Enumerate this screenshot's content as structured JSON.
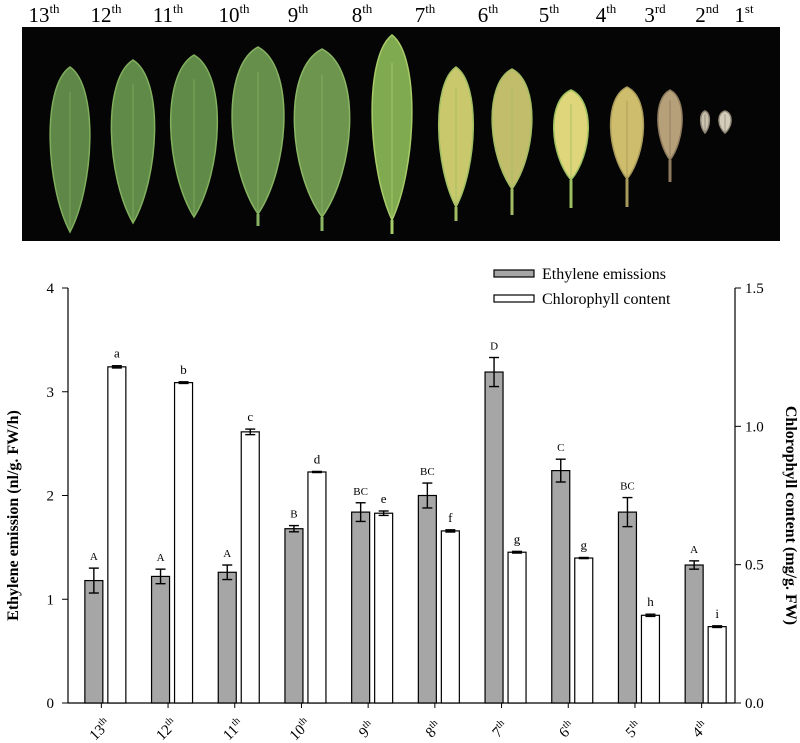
{
  "photo": {
    "leaf_labels": [
      {
        "num": "13",
        "suf": "th"
      },
      {
        "num": "12",
        "suf": "th"
      },
      {
        "num": "11",
        "suf": "th"
      },
      {
        "num": "10",
        "suf": "th"
      },
      {
        "num": "9",
        "suf": "th"
      },
      {
        "num": "8",
        "suf": "th"
      },
      {
        "num": "7",
        "suf": "th"
      },
      {
        "num": "6",
        "suf": "th"
      },
      {
        "num": "5",
        "suf": "th"
      },
      {
        "num": "4",
        "suf": "th"
      },
      {
        "num": "3",
        "suf": "rd"
      },
      {
        "num": "2",
        "suf": "nd"
      },
      {
        "num": "1",
        "suf": "st"
      }
    ],
    "leaves": [
      {
        "fill": "#5f8748",
        "edge": "#7fae5c"
      },
      {
        "fill": "#5f8a47",
        "edge": "#82b05e"
      },
      {
        "fill": "#5f8a47",
        "edge": "#82b05e"
      },
      {
        "fill": "#678f4c",
        "edge": "#86b262"
      },
      {
        "fill": "#6d954e",
        "edge": "#8bb765"
      },
      {
        "fill": "#7faa4f",
        "edge": "#a9cc6a"
      },
      {
        "fill": "#c9c86c",
        "edge": "#9fbf62"
      },
      {
        "fill": "#c2bd6a",
        "edge": "#a4bd64"
      },
      {
        "fill": "#dfd67c",
        "edge": "#9cbf60"
      },
      {
        "fill": "#cdbd6c",
        "edge": "#a89a5a"
      },
      {
        "fill": "#b5a07a",
        "edge": "#8e7a5d"
      },
      {
        "fill": "#c9c2ae",
        "edge": "#8e8677"
      },
      {
        "fill": "#d3cdbb",
        "edge": "#958c7c"
      }
    ]
  },
  "chart_data": {
    "type": "bar",
    "categories": [
      {
        "num": "13",
        "suf": "th"
      },
      {
        "num": "12",
        "suf": "th"
      },
      {
        "num": "11",
        "suf": "th"
      },
      {
        "num": "10",
        "suf": "th"
      },
      {
        "num": "9",
        "suf": "th"
      },
      {
        "num": "8",
        "suf": "th"
      },
      {
        "num": "7",
        "suf": "th"
      },
      {
        "num": "6",
        "suf": "th"
      },
      {
        "num": "5",
        "suf": "th"
      },
      {
        "num": "4",
        "suf": "th"
      }
    ],
    "series": [
      {
        "name": "Ethylene emissions",
        "axis": "left",
        "color": "#a6a6a6",
        "values": [
          1.18,
          1.22,
          1.26,
          1.68,
          1.84,
          2.0,
          3.19,
          2.24,
          1.84,
          1.33
        ],
        "errors": [
          0.12,
          0.07,
          0.07,
          0.03,
          0.09,
          0.12,
          0.14,
          0.11,
          0.14,
          0.04
        ],
        "labels": [
          "A",
          "A",
          "A",
          "B",
          "BC",
          "BC",
          "D",
          "C",
          "BC",
          "A"
        ]
      },
      {
        "name": "Chlorophyll content",
        "axis": "right",
        "color": "#ffffff",
        "values": [
          1.215,
          1.158,
          0.98,
          0.835,
          0.686,
          0.622,
          0.545,
          0.524,
          0.317,
          0.276
        ],
        "errors": [
          0.004,
          0.003,
          0.01,
          0.002,
          0.008,
          0.004,
          0.003,
          0.002,
          0.004,
          0.003
        ],
        "labels": [
          "a",
          "b",
          "c",
          "d",
          "e",
          "f",
          "g",
          "g",
          "h",
          "i"
        ]
      }
    ],
    "ylabel_left": "Ethylene emission (nl/g. FW/h)",
    "ylabel_right": "Chlorophyll content (mg/g. FW)",
    "ylim_left": [
      0,
      4
    ],
    "ylim_right": [
      0,
      1.5
    ],
    "yticks_left": [
      "0",
      "1",
      "2",
      "3",
      "4"
    ],
    "yticks_right": [
      "0.0",
      "0.5",
      "1.0",
      "1.5"
    ],
    "legend_position": "top-right",
    "grid": false
  }
}
